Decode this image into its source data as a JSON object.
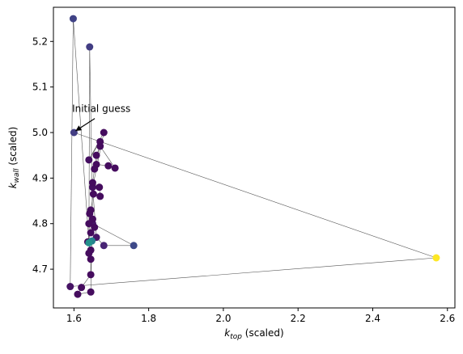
{
  "chart_data": {
    "type": "scatter",
    "title": "",
    "xlabel": {
      "main": "k",
      "sub": "top",
      "suffix": " (scaled)"
    },
    "ylabel": {
      "main": "k",
      "sub": "wall",
      "suffix": " (scaled)"
    },
    "xlim": [
      1.545,
      2.62
    ],
    "ylim": [
      4.615,
      5.275
    ],
    "xticks": [
      1.6,
      1.8,
      2.0,
      2.2,
      2.4,
      2.6
    ],
    "xtick_labels": [
      "1.6",
      "1.8",
      "2.0",
      "2.2",
      "2.4",
      "2.6"
    ],
    "yticks": [
      4.7,
      4.8,
      4.9,
      5.0,
      5.1,
      5.2
    ],
    "ytick_labels": [
      "4.7",
      "4.8",
      "4.9",
      "5.0",
      "5.1",
      "5.2"
    ],
    "grid": false,
    "colormap": "viridis",
    "line_color": "#555555",
    "annotation": {
      "text": "Initial guess",
      "x": 1.6,
      "y": 5.0,
      "text_x": 1.595,
      "text_y": 5.045
    },
    "points": [
      {
        "x": 1.6,
        "y": 5.0,
        "c": 0.18
      },
      {
        "x": 2.57,
        "y": 4.725,
        "c": 1.0
      },
      {
        "x": 1.59,
        "y": 4.662,
        "c": 0.05
      },
      {
        "x": 1.598,
        "y": 5.25,
        "c": 0.2
      },
      {
        "x": 1.64,
        "y": 4.76,
        "c": 0.1
      },
      {
        "x": 1.642,
        "y": 5.188,
        "c": 0.18
      },
      {
        "x": 1.65,
        "y": 4.8,
        "c": 0.06
      },
      {
        "x": 1.76,
        "y": 4.752,
        "c": 0.22
      },
      {
        "x": 1.68,
        "y": 4.752,
        "c": 0.1
      },
      {
        "x": 1.66,
        "y": 4.77,
        "c": 0.06
      },
      {
        "x": 1.65,
        "y": 4.88,
        "c": 0.04
      },
      {
        "x": 1.68,
        "y": 5.0,
        "c": 0.03
      },
      {
        "x": 1.64,
        "y": 4.94,
        "c": 0.04
      },
      {
        "x": 1.67,
        "y": 4.98,
        "c": 0.03
      },
      {
        "x": 1.66,
        "y": 4.93,
        "c": 0.03
      },
      {
        "x": 1.692,
        "y": 4.927,
        "c": 0.03
      },
      {
        "x": 1.71,
        "y": 4.922,
        "c": 0.03
      },
      {
        "x": 1.67,
        "y": 4.97,
        "c": 0.03
      },
      {
        "x": 1.66,
        "y": 4.95,
        "c": 0.03
      },
      {
        "x": 1.655,
        "y": 4.92,
        "c": 0.03
      },
      {
        "x": 1.65,
        "y": 4.89,
        "c": 0.03
      },
      {
        "x": 1.668,
        "y": 4.88,
        "c": 0.03
      },
      {
        "x": 1.67,
        "y": 4.86,
        "c": 0.03
      },
      {
        "x": 1.652,
        "y": 4.865,
        "c": 0.03
      },
      {
        "x": 1.645,
        "y": 4.83,
        "c": 0.03
      },
      {
        "x": 1.642,
        "y": 4.822,
        "c": 0.03
      },
      {
        "x": 1.65,
        "y": 4.81,
        "c": 0.03
      },
      {
        "x": 1.655,
        "y": 4.792,
        "c": 0.03
      },
      {
        "x": 1.64,
        "y": 4.8,
        "c": 0.03
      },
      {
        "x": 1.645,
        "y": 4.78,
        "c": 0.03
      },
      {
        "x": 1.637,
        "y": 4.76,
        "c": 0.03
      },
      {
        "x": 1.645,
        "y": 4.742,
        "c": 0.03
      },
      {
        "x": 1.64,
        "y": 4.735,
        "c": 0.03
      },
      {
        "x": 1.645,
        "y": 4.722,
        "c": 0.03
      },
      {
        "x": 1.645,
        "y": 4.688,
        "c": 0.03
      },
      {
        "x": 1.62,
        "y": 4.66,
        "c": 0.03
      },
      {
        "x": 1.61,
        "y": 4.645,
        "c": 0.03
      },
      {
        "x": 1.645,
        "y": 4.65,
        "c": 0.03
      },
      {
        "x": 1.648,
        "y": 4.762,
        "c": 0.45
      },
      {
        "x": 1.64,
        "y": 4.758,
        "c": 0.5
      }
    ]
  }
}
